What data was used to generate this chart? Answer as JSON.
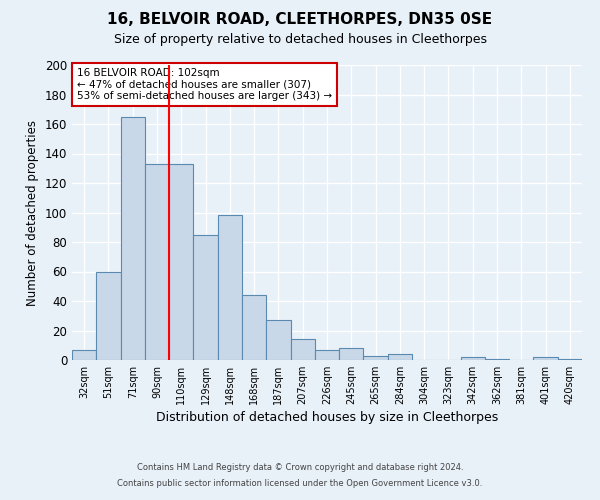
{
  "title": "16, BELVOIR ROAD, CLEETHORPES, DN35 0SE",
  "subtitle": "Size of property relative to detached houses in Cleethorpes",
  "xlabel": "Distribution of detached houses by size in Cleethorpes",
  "ylabel": "Number of detached properties",
  "footer_lines": [
    "Contains HM Land Registry data © Crown copyright and database right 2024.",
    "Contains public sector information licensed under the Open Government Licence v3.0."
  ],
  "bin_labels": [
    "32sqm",
    "51sqm",
    "71sqm",
    "90sqm",
    "110sqm",
    "129sqm",
    "148sqm",
    "168sqm",
    "187sqm",
    "207sqm",
    "226sqm",
    "245sqm",
    "265sqm",
    "284sqm",
    "304sqm",
    "323sqm",
    "342sqm",
    "362sqm",
    "381sqm",
    "401sqm",
    "420sqm"
  ],
  "bar_values": [
    7,
    60,
    165,
    133,
    133,
    85,
    98,
    44,
    27,
    14,
    7,
    8,
    3,
    4,
    0,
    0,
    2,
    1,
    0,
    2,
    1
  ],
  "bar_color": "#c8d8e8",
  "bar_edge_color": "#5a8ab0",
  "annotation_title": "16 BELVOIR ROAD: 102sqm",
  "annotation_line1": "← 47% of detached houses are smaller (307)",
  "annotation_line2": "53% of semi-detached houses are larger (343) →",
  "annotation_box_color": "#ffffff",
  "annotation_box_edge_color": "#cc0000",
  "ylim": [
    0,
    200
  ],
  "yticks": [
    0,
    20,
    40,
    60,
    80,
    100,
    120,
    140,
    160,
    180,
    200
  ],
  "background_color": "#e8f0f8",
  "grid_color": "#ffffff",
  "title_fontsize": 11,
  "subtitle_fontsize": 9,
  "red_line_bar_index": 3.5
}
